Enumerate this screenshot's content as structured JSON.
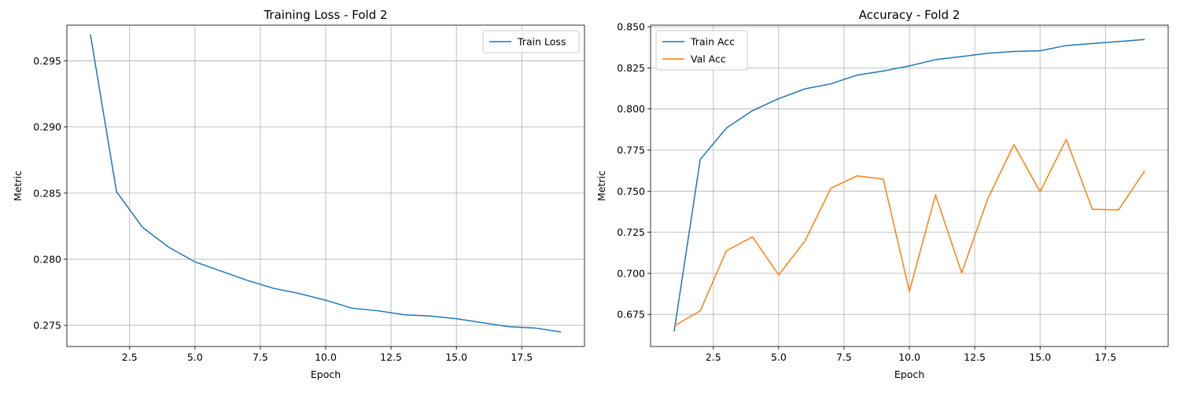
{
  "chart_data": [
    {
      "type": "line",
      "title": "Training Loss - Fold 2",
      "xlabel": "Epoch",
      "ylabel": "Metric",
      "xlim": [
        0.1,
        19.9
      ],
      "ylim": [
        0.2734,
        0.2977
      ],
      "xticks": [
        2.5,
        5.0,
        7.5,
        10.0,
        12.5,
        15.0,
        17.5
      ],
      "xtick_labels": [
        "2.5",
        "5.0",
        "7.5",
        "10.0",
        "12.5",
        "15.0",
        "17.5"
      ],
      "yticks": [
        0.275,
        0.28,
        0.285,
        0.29,
        0.295
      ],
      "ytick_labels": [
        "0.275",
        "0.280",
        "0.285",
        "0.290",
        "0.295"
      ],
      "grid": true,
      "legend_position": "upper right",
      "x": [
        1,
        2,
        3,
        4,
        5,
        6,
        7,
        8,
        9,
        10,
        11,
        12,
        13,
        14,
        15,
        16,
        17,
        18,
        19
      ],
      "series": [
        {
          "name": "Train Loss",
          "color": "#1f77b4",
          "values": [
            0.297,
            0.2851,
            0.2824,
            0.2809,
            0.2798,
            0.2791,
            0.2784,
            0.2778,
            0.2774,
            0.2769,
            0.2763,
            0.2761,
            0.2758,
            0.2757,
            0.2755,
            0.2752,
            0.2749,
            0.2748,
            0.2745
          ]
        }
      ]
    },
    {
      "type": "line",
      "title": "Accuracy - Fold 2",
      "xlabel": "Epoch",
      "ylabel": "Metric",
      "xlim": [
        0.1,
        19.9
      ],
      "ylim": [
        0.6555,
        0.851
      ],
      "xticks": [
        2.5,
        5.0,
        7.5,
        10.0,
        12.5,
        15.0,
        17.5
      ],
      "xtick_labels": [
        "2.5",
        "5.0",
        "7.5",
        "10.0",
        "12.5",
        "15.0",
        "17.5"
      ],
      "yticks": [
        0.675,
        0.7,
        0.725,
        0.75,
        0.775,
        0.8,
        0.825,
        0.85
      ],
      "ytick_labels": [
        "0.675",
        "0.700",
        "0.725",
        "0.750",
        "0.775",
        "0.800",
        "0.825",
        "0.850"
      ],
      "grid": true,
      "legend_position": "upper left",
      "x": [
        1,
        2,
        3,
        4,
        5,
        6,
        7,
        8,
        9,
        10,
        11,
        12,
        13,
        14,
        15,
        16,
        17,
        18,
        19
      ],
      "series": [
        {
          "name": "Train Acc",
          "color": "#1f77b4",
          "values": [
            0.6645,
            0.7693,
            0.7884,
            0.799,
            0.8063,
            0.8122,
            0.8153,
            0.8206,
            0.8231,
            0.8262,
            0.83,
            0.8319,
            0.8339,
            0.835,
            0.8354,
            0.8386,
            0.8398,
            0.841,
            0.8423
          ]
        },
        {
          "name": "Val Acc",
          "color": "#ff7f0e",
          "values": [
            0.668,
            0.6772,
            0.7137,
            0.7222,
            0.699,
            0.7196,
            0.7518,
            0.7593,
            0.7574,
            0.6891,
            0.7477,
            0.7003,
            0.7454,
            0.7784,
            0.7496,
            0.7815,
            0.739,
            0.7386,
            0.7624
          ]
        }
      ]
    }
  ]
}
